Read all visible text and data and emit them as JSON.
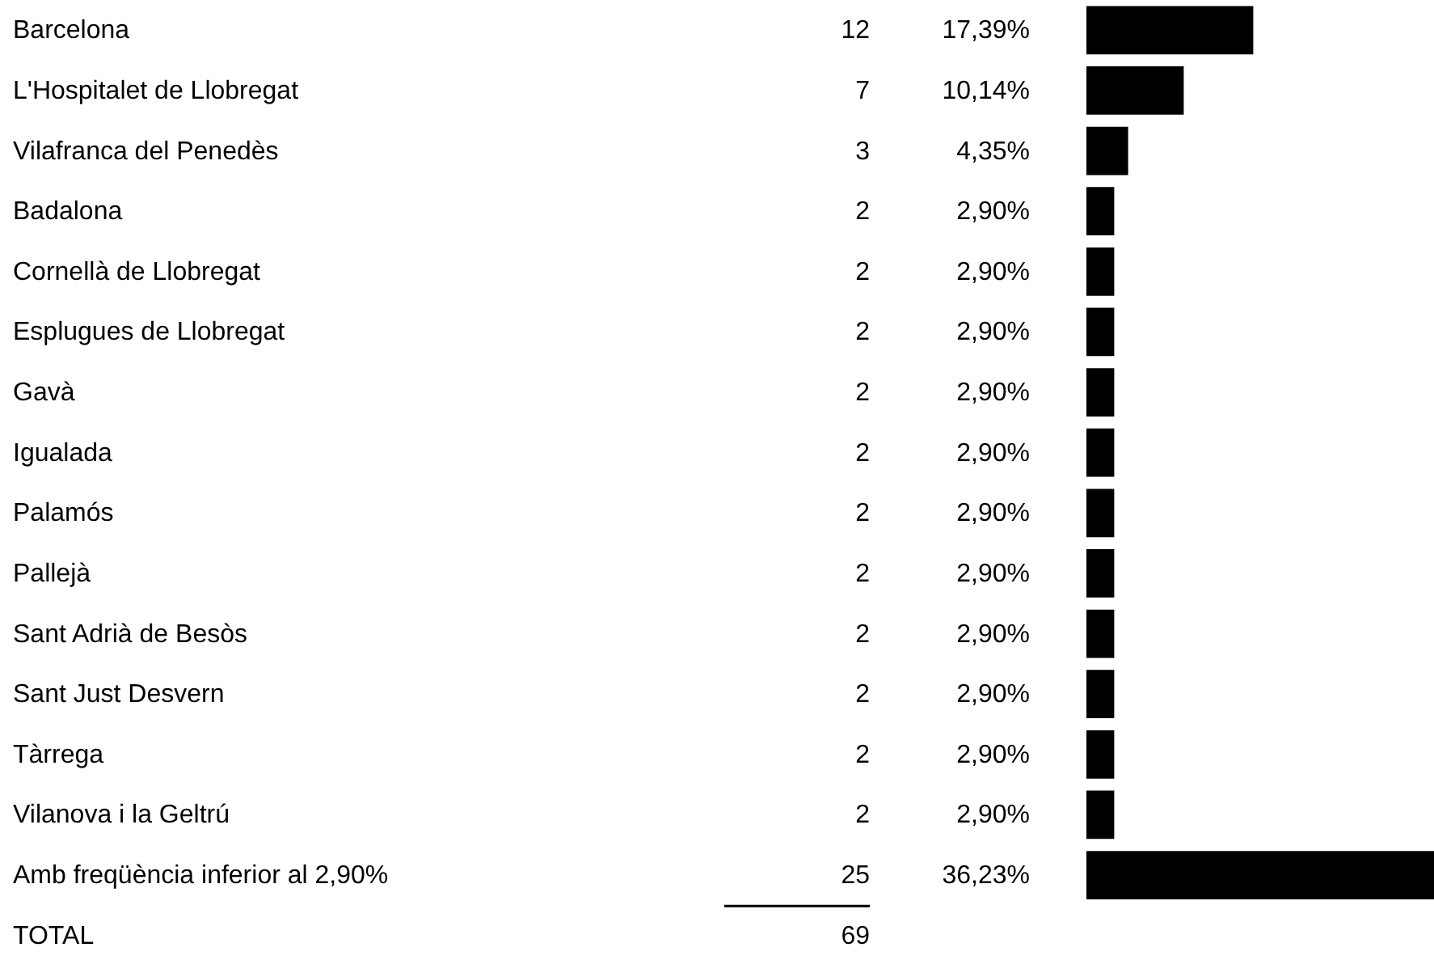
{
  "chart_data": {
    "type": "bar",
    "orientation": "horizontal",
    "categories": [
      "Barcelona",
      "L'Hospitalet de Llobregat",
      "Vilafranca del Penedès",
      "Badalona",
      "Cornellà de Llobregat",
      "Esplugues de Llobregat",
      "Gavà",
      "Igualada",
      "Palamós",
      "Pallejà",
      "Sant Adrià de Besòs",
      "Sant Just Desvern",
      "Tàrrega",
      "Vilanova i la Geltrú",
      "Amb freqüència inferior al 2,90%"
    ],
    "series": [
      {
        "color": "#000000",
        "values": [
          12,
          7,
          3,
          2,
          2,
          2,
          2,
          2,
          2,
          2,
          2,
          2,
          2,
          2,
          25
        ]
      }
    ],
    "data_labels": true,
    "annotations": [
      "17,39%",
      "10,14%",
      "4,35%",
      "2,90%",
      "2,90%",
      "2,90%",
      "2,90%",
      "2,90%",
      "2,90%",
      "2,90%",
      "2,90%",
      "2,90%",
      "2,90%",
      "2,90%",
      "36,23%",
      "TOTAL",
      "69"
    ]
  }
}
